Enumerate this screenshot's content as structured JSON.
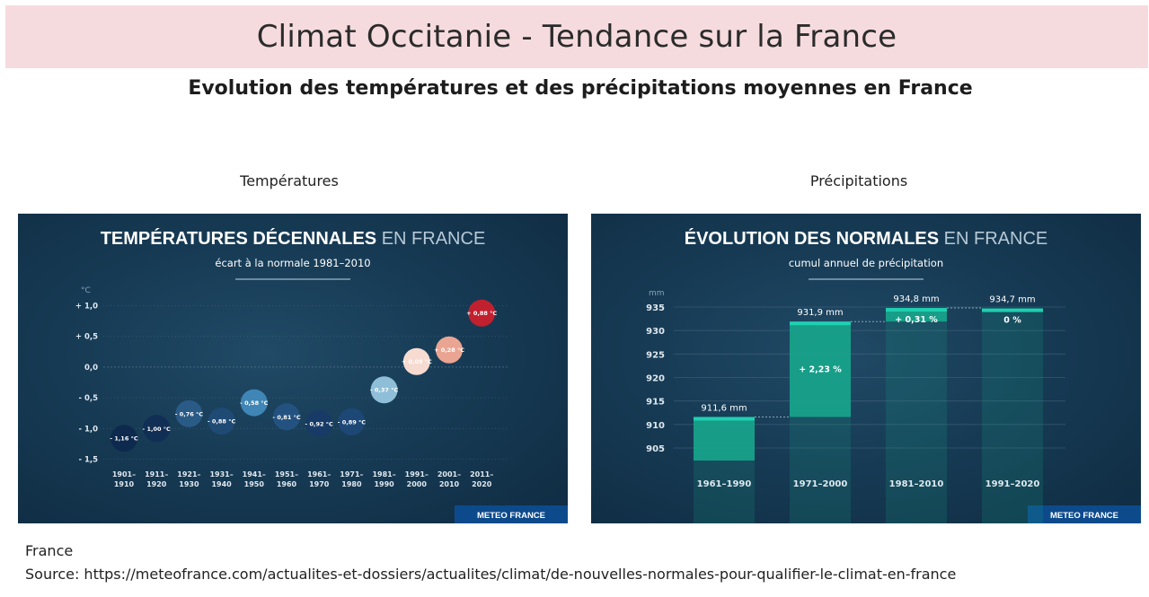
{
  "header": {
    "title": "Climat Occitanie - Tendance sur la France",
    "subtitle": "Evolution des températures et des précipitations moyennes en France"
  },
  "panels": {
    "temperature_label": "Températures",
    "precipitation_label": "Précipitations"
  },
  "footer": {
    "region": "France",
    "source": "Source: https://meteofrance.com/actualites-et-dossiers/actualites/climat/de-nouvelles-normales-pour-qualifier-le-climat-en-france"
  },
  "colors": {
    "background_dark": "#173b55",
    "brand_bar": "#0d4a8c",
    "bar_teal": "#17a58c",
    "bar_top": "#1fd0b0",
    "warm_max": "#c1202f",
    "cold_max": "#0d2a4e"
  },
  "chart_data": [
    {
      "type": "scatter",
      "title_bold": "TEMPÉRATURES DÉCENNALES",
      "title_light": "EN FRANCE",
      "subtitle": "écart à la normale 1981–2010",
      "ylabel": "°C",
      "ylim": [
        -1.5,
        1.0
      ],
      "yticks": [
        "+ 1,0",
        "+ 0,5",
        "0,0",
        "- 0,5",
        "- 1,0",
        "- 1,5"
      ],
      "ytick_values": [
        1.0,
        0.5,
        0.0,
        -0.5,
        -1.0,
        -1.5
      ],
      "categories": [
        "1901–\n1910",
        "1911–\n1920",
        "1921–\n1930",
        "1931–\n1940",
        "1941–\n1950",
        "1951–\n1960",
        "1961–\n1970",
        "1971–\n1980",
        "1981–\n1990",
        "1991–\n2000",
        "2001–\n2010",
        "2011–\n2020"
      ],
      "values": [
        -1.16,
        -1.0,
        -0.76,
        -0.88,
        -0.58,
        -0.81,
        -0.92,
        -0.89,
        -0.37,
        0.09,
        0.28,
        0.88
      ],
      "labels": [
        "- 1,16 °C",
        "- 1,00 °C",
        "- 0,76 °C",
        "- 0,88 °C",
        "- 0,58 °C",
        "- 0,81 °C",
        "- 0,92 °C",
        "- 0,89 °C",
        "- 0,37 °C",
        "+ 0,09 °C",
        "+ 0,28 °C",
        "+ 0,88 °C"
      ],
      "colors": [
        "#0d2a4e",
        "#112e54",
        "#2a5a86",
        "#1f4a74",
        "#3f86b6",
        "#245280",
        "#173b66",
        "#1d4876",
        "#8fbfd8",
        "#f7dbd0",
        "#eaa592",
        "#c1202f"
      ],
      "brand": "METEO FRANCE"
    },
    {
      "type": "bar",
      "title_bold": "ÉVOLUTION DES NORMALES",
      "title_light": "EN FRANCE",
      "subtitle": "cumul annuel de précipitation",
      "ylabel": "mm",
      "ylim": [
        900,
        936
      ],
      "yticks": [
        "935",
        "930",
        "925",
        "920",
        "915",
        "910",
        "905"
      ],
      "ytick_values": [
        935,
        930,
        925,
        920,
        915,
        910,
        905
      ],
      "categories": [
        "1961–1990",
        "1971–2000",
        "1981–2010",
        "1991–2020"
      ],
      "values": [
        911.6,
        931.9,
        934.8,
        934.7
      ],
      "value_labels": [
        "911,6 mm",
        "931,9 mm",
        "934,8 mm",
        "934,7 mm"
      ],
      "change_labels": [
        "",
        "+ 2,23 %",
        "+ 0,31 %",
        "0 %"
      ],
      "brand": "METEO FRANCE"
    }
  ]
}
